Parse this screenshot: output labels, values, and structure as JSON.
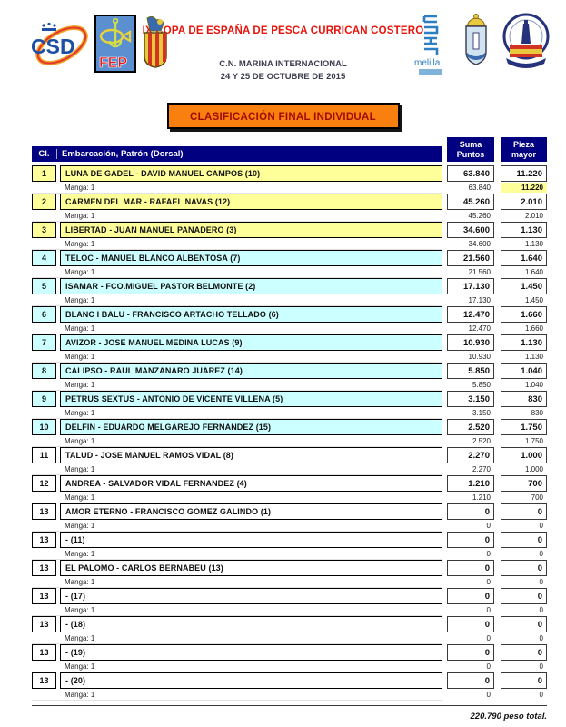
{
  "header": {
    "title": "IX COPA DE ESPAÑA DE PESCA CURRICAN COSTERO",
    "venue": "C.N. MARINA INTERNACIONAL",
    "dates": "24 Y 25 DE OCTUBRE DE 2015",
    "logos_left": [
      "csd-logo",
      "fep-logo",
      "federacion-valenciana-crest-logo"
    ],
    "logos_right": [
      "melilla-logo",
      "escudo-ciudad-logo",
      "club-nautico-logo"
    ],
    "fep_text": "FEP",
    "csd_text": "CSD",
    "melilla_text": "melilla"
  },
  "banner": {
    "label": "CLASIFICACIÓN FINAL INDIVIDUAL"
  },
  "colors": {
    "navy": "#000080",
    "row_yellow": "#ffff99",
    "row_cyan": "#ccffff",
    "banner_orange": "#f9800f",
    "banner_text": "#9e0b00",
    "title_red": "#e8120b"
  },
  "table": {
    "col_cl": "Cl.",
    "col_name": "Embarcación, Patrón (Dorsal)",
    "col_suma_line1": "Suma",
    "col_suma_line2": "Puntos",
    "col_pieza_line1": "Pieza",
    "col_pieza_line2": "mayor",
    "manga_label": "Manga: 1",
    "rows": [
      {
        "cl": "1",
        "name": "LUNA DE GADEL - DAVID MANUEL CAMPOS (10)",
        "suma": "63.840",
        "pieza": "11.220",
        "bg": "yellow",
        "manga_suma": "63.840",
        "manga_pieza": "11.220",
        "manga_pieza_highlight": true
      },
      {
        "cl": "2",
        "name": "CARMEN DEL MAR - RAFAEL NAVAS (12)",
        "suma": "45.260",
        "pieza": "2.010",
        "bg": "yellow",
        "manga_suma": "45.260",
        "manga_pieza": "2.010",
        "manga_pieza_highlight": false
      },
      {
        "cl": "3",
        "name": "LIBERTAD - JUAN MANUEL PANADERO (3)",
        "suma": "34.600",
        "pieza": "1.130",
        "bg": "yellow",
        "manga_suma": "34.600",
        "manga_pieza": "1.130",
        "manga_pieza_highlight": false
      },
      {
        "cl": "4",
        "name": "TELOC - MANUEL BLANCO ALBENTOSA (7)",
        "suma": "21.560",
        "pieza": "1.640",
        "bg": "cyan",
        "manga_suma": "21.560",
        "manga_pieza": "1.640",
        "manga_pieza_highlight": false
      },
      {
        "cl": "5",
        "name": "ISAMAR - FCO.MIGUEL PASTOR BELMONTE (2)",
        "suma": "17.130",
        "pieza": "1.450",
        "bg": "cyan",
        "manga_suma": "17.130",
        "manga_pieza": "1.450",
        "manga_pieza_highlight": false
      },
      {
        "cl": "6",
        "name": "BLANC I BALU - FRANCISCO ARTACHO TELLADO (6)",
        "suma": "12.470",
        "pieza": "1.660",
        "bg": "cyan",
        "manga_suma": "12.470",
        "manga_pieza": "1.660",
        "manga_pieza_highlight": false
      },
      {
        "cl": "7",
        "name": "AVIZOR - JOSE MANUEL MEDINA LUCAS (9)",
        "suma": "10.930",
        "pieza": "1.130",
        "bg": "cyan",
        "manga_suma": "10.930",
        "manga_pieza": "1.130",
        "manga_pieza_highlight": false
      },
      {
        "cl": "8",
        "name": "CALIPSO - RAUL MANZANARO JUAREZ (14)",
        "suma": "5.850",
        "pieza": "1.040",
        "bg": "cyan",
        "manga_suma": "5.850",
        "manga_pieza": "1.040",
        "manga_pieza_highlight": false
      },
      {
        "cl": "9",
        "name": "PETRUS SEXTUS - ANTONIO DE VICENTE VILLENA (5)",
        "suma": "3.150",
        "pieza": "830",
        "bg": "cyan",
        "manga_suma": "3.150",
        "manga_pieza": "830",
        "manga_pieza_highlight": false
      },
      {
        "cl": "10",
        "name": "DELFIN - EDUARDO MELGAREJO FERNANDEZ (15)",
        "suma": "2.520",
        "pieza": "1.750",
        "bg": "cyan",
        "manga_suma": "2.520",
        "manga_pieza": "1.750",
        "manga_pieza_highlight": false
      },
      {
        "cl": "11",
        "name": "TALUD - JOSE MANUEL RAMOS VIDAL (8)",
        "suma": "2.270",
        "pieza": "1.000",
        "bg": "white",
        "manga_suma": "2.270",
        "manga_pieza": "1.000",
        "manga_pieza_highlight": false
      },
      {
        "cl": "12",
        "name": "ANDREA - SALVADOR VIDAL FERNANDEZ (4)",
        "suma": "1.210",
        "pieza": "700",
        "bg": "white",
        "manga_suma": "1.210",
        "manga_pieza": "700",
        "manga_pieza_highlight": false
      },
      {
        "cl": "13",
        "name": "AMOR ETERNO - FRANCISCO GOMEZ GALINDO (1)",
        "suma": "0",
        "pieza": "0",
        "bg": "white",
        "manga_suma": "0",
        "manga_pieza": "0",
        "manga_pieza_highlight": false
      },
      {
        "cl": "13",
        "name": "- (11)",
        "suma": "0",
        "pieza": "0",
        "bg": "white",
        "manga_suma": "0",
        "manga_pieza": "0",
        "manga_pieza_highlight": false
      },
      {
        "cl": "13",
        "name": "EL PALOMO - CARLOS BERNABEU (13)",
        "suma": "0",
        "pieza": "0",
        "bg": "white",
        "manga_suma": "0",
        "manga_pieza": "0",
        "manga_pieza_highlight": false
      },
      {
        "cl": "13",
        "name": "- (17)",
        "suma": "0",
        "pieza": "0",
        "bg": "white",
        "manga_suma": "0",
        "manga_pieza": "0",
        "manga_pieza_highlight": false
      },
      {
        "cl": "13",
        "name": "- (18)",
        "suma": "0",
        "pieza": "0",
        "bg": "white",
        "manga_suma": "0",
        "manga_pieza": "0",
        "manga_pieza_highlight": false
      },
      {
        "cl": "13",
        "name": "- (19)",
        "suma": "0",
        "pieza": "0",
        "bg": "white",
        "manga_suma": "0",
        "manga_pieza": "0",
        "manga_pieza_highlight": false
      },
      {
        "cl": "13",
        "name": "- (20)",
        "suma": "0",
        "pieza": "0",
        "bg": "white",
        "manga_suma": "0",
        "manga_pieza": "0",
        "manga_pieza_highlight": false
      }
    ]
  },
  "footer": {
    "total": "220.790 peso total."
  }
}
